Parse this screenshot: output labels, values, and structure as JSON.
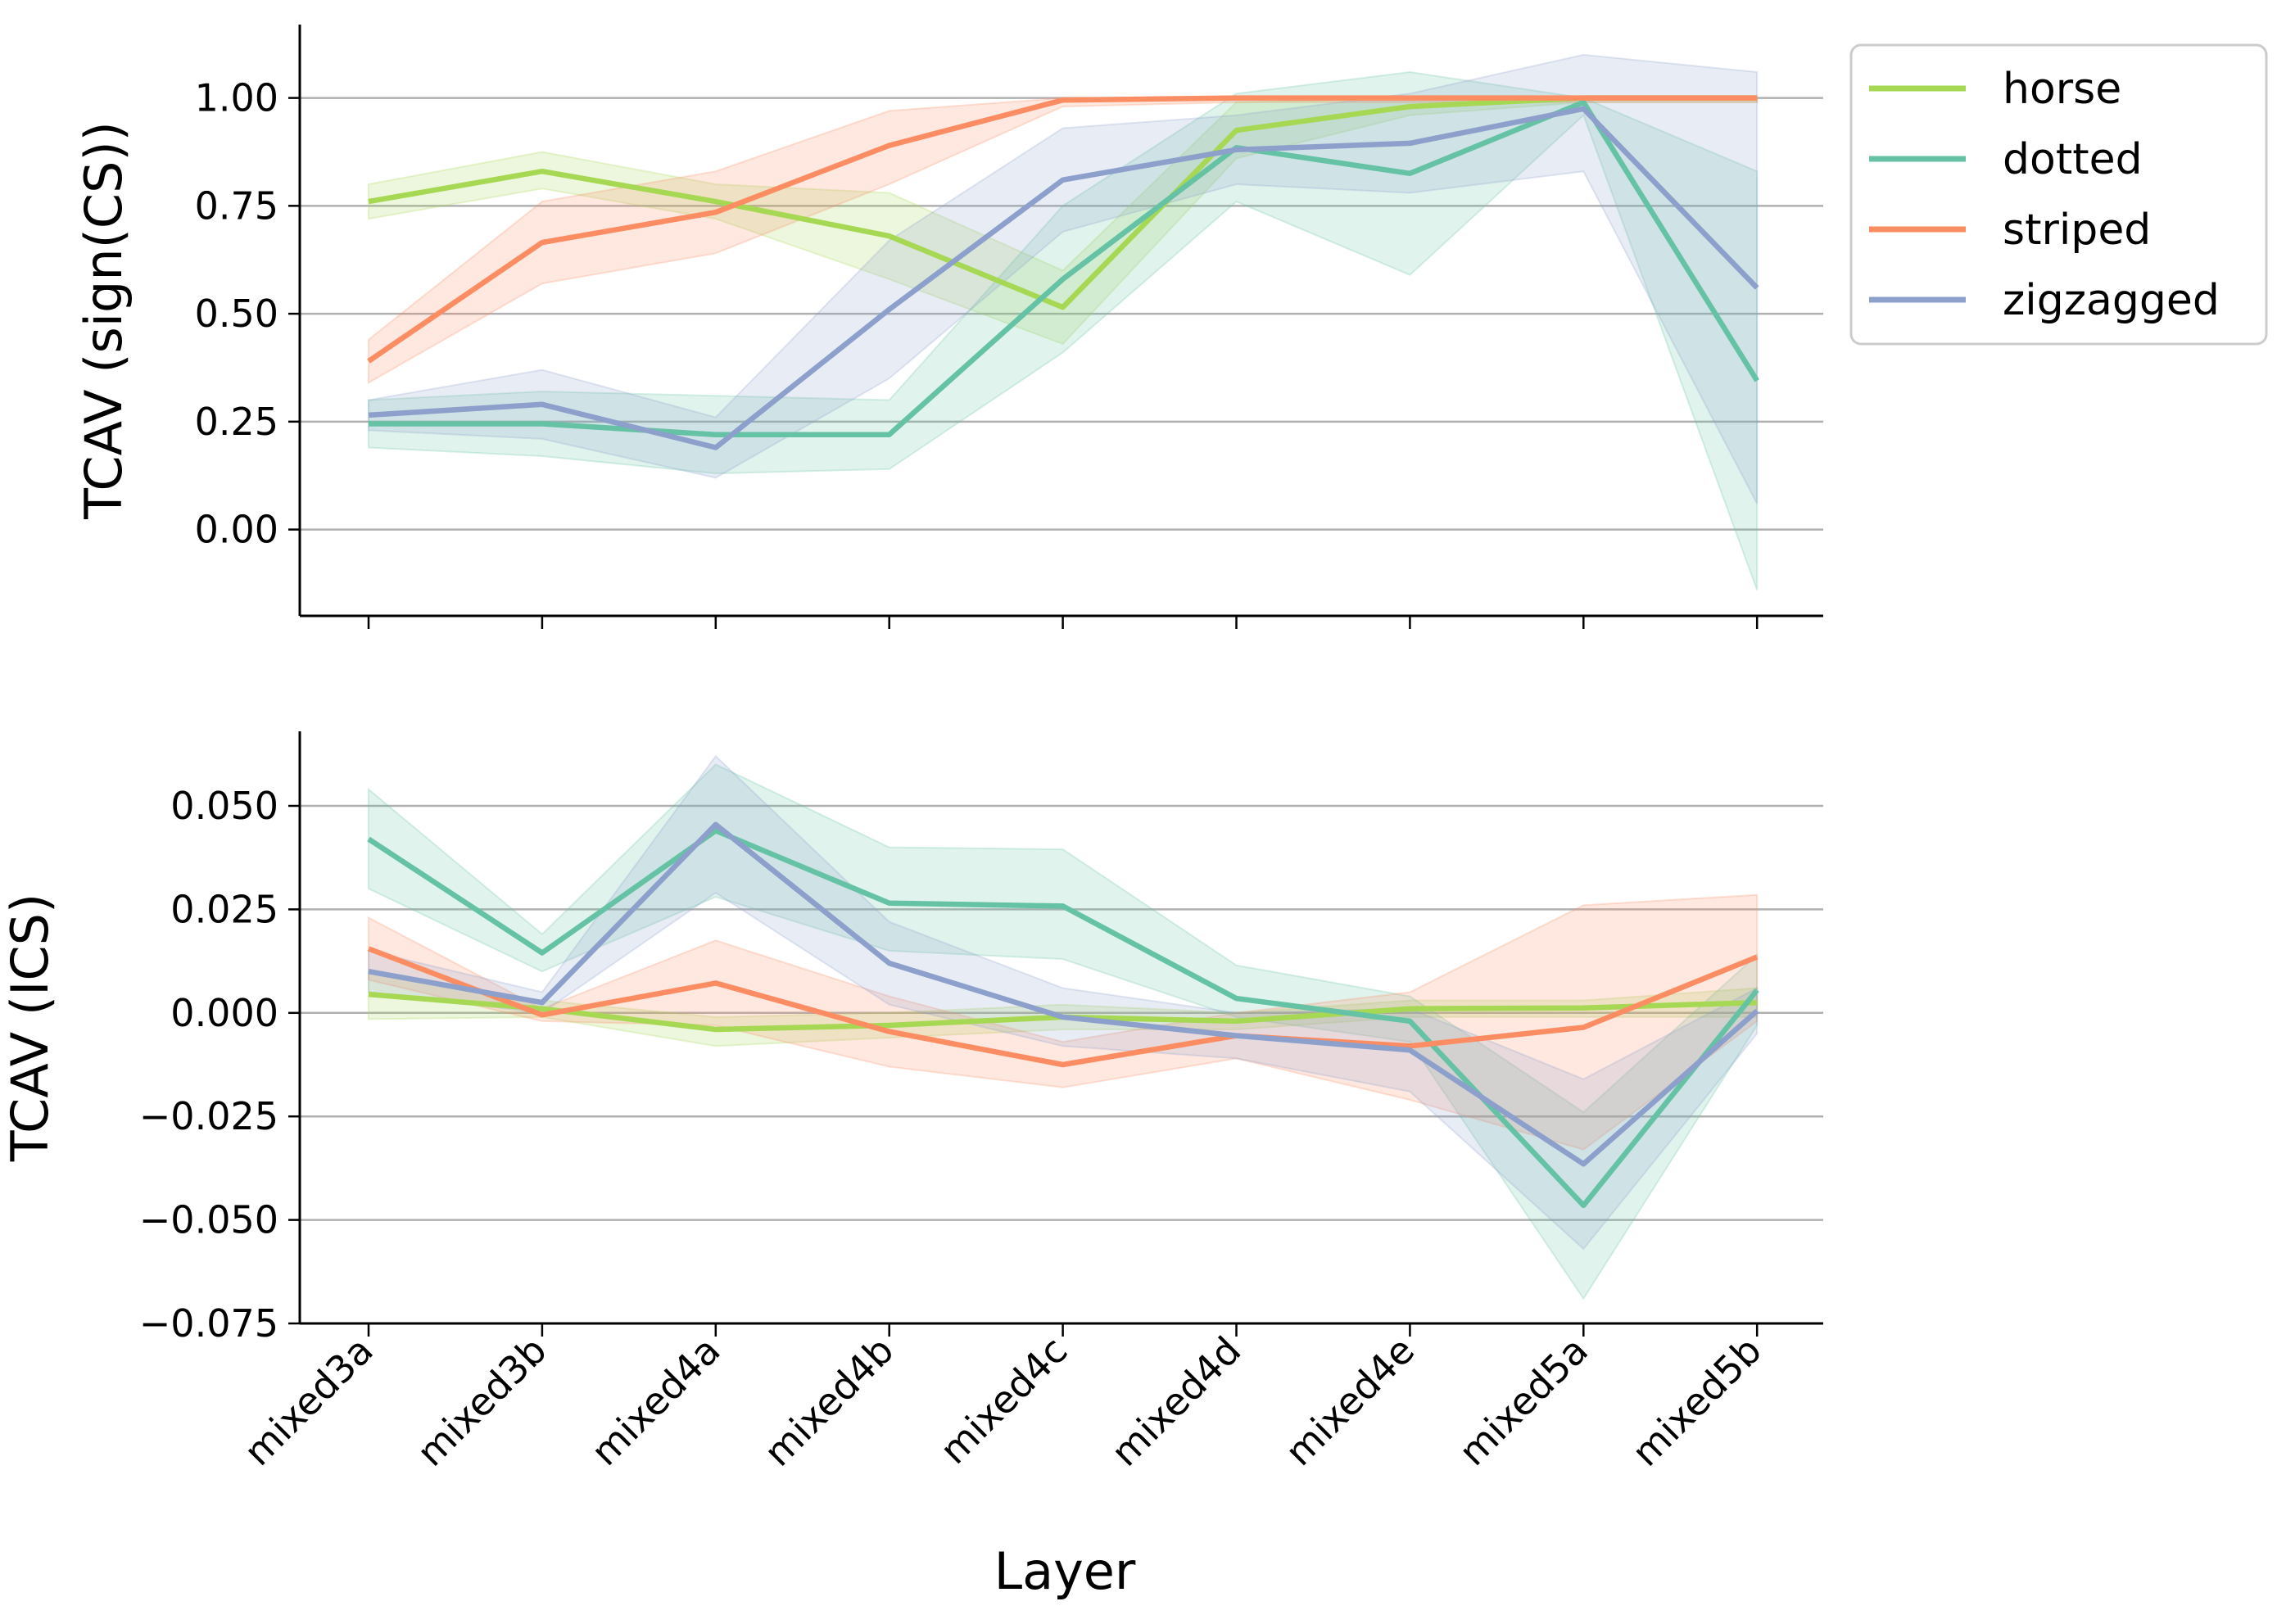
{
  "chart_data": [
    {
      "type": "line",
      "ylabel": "TCAV (sign(CS))",
      "xlabel": "",
      "ylim": [
        -0.2,
        1.17
      ],
      "yticks": [
        0.0,
        0.25,
        0.5,
        0.75,
        1.0
      ],
      "ytick_labels": [
        "0.00",
        "0.25",
        "0.50",
        "0.75",
        "1.00"
      ],
      "grid": "horizontal",
      "legend": "outside top-right",
      "series": [
        {
          "name": "horse",
          "color": "#a6d854",
          "values": [
            0.76,
            0.83,
            0.76,
            0.68,
            0.515,
            0.925,
            0.98,
            1.0,
            1.0
          ],
          "lower": [
            0.72,
            0.79,
            0.72,
            0.58,
            0.43,
            0.86,
            0.96,
            0.99,
            0.99
          ],
          "upper": [
            0.8,
            0.875,
            0.8,
            0.78,
            0.6,
            0.99,
            1.0,
            1.0,
            1.0
          ]
        },
        {
          "name": "dotted",
          "color": "#66c2a5",
          "values": [
            0.245,
            0.245,
            0.22,
            0.22,
            0.58,
            0.885,
            0.825,
            0.99,
            0.345
          ],
          "lower": [
            0.19,
            0.17,
            0.13,
            0.14,
            0.41,
            0.76,
            0.59,
            0.96,
            -0.14
          ],
          "upper": [
            0.3,
            0.32,
            0.31,
            0.3,
            0.75,
            1.01,
            1.06,
            1.0,
            0.83
          ]
        },
        {
          "name": "striped",
          "color": "#fc8d62",
          "values": [
            0.39,
            0.665,
            0.735,
            0.89,
            0.995,
            1.0,
            1.0,
            1.0,
            1.0
          ],
          "lower": [
            0.34,
            0.57,
            0.64,
            0.8,
            0.98,
            0.99,
            0.99,
            0.99,
            0.99
          ],
          "upper": [
            0.44,
            0.76,
            0.83,
            0.97,
            1.0,
            1.0,
            1.0,
            1.0,
            1.0
          ]
        },
        {
          "name": "zigzagged",
          "color": "#8da0cb",
          "values": [
            0.265,
            0.29,
            0.19,
            0.51,
            0.81,
            0.88,
            0.895,
            0.975,
            0.56
          ],
          "lower": [
            0.23,
            0.21,
            0.12,
            0.35,
            0.69,
            0.8,
            0.78,
            0.83,
            0.06
          ],
          "upper": [
            0.3,
            0.37,
            0.26,
            0.67,
            0.93,
            0.96,
            1.01,
            1.1,
            1.06
          ]
        }
      ]
    },
    {
      "type": "line",
      "ylabel": "TCAV (ICS)",
      "xlabel": "Layer",
      "ylim": [
        -0.075,
        0.068
      ],
      "yticks": [
        -0.075,
        -0.05,
        -0.025,
        0.0,
        0.025,
        0.05
      ],
      "ytick_labels": [
        "−0.075",
        "−0.050",
        "−0.025",
        "0.000",
        "0.025",
        "0.050"
      ],
      "grid": "horizontal",
      "series": [
        {
          "name": "horse",
          "color": "#a6d854",
          "values": [
            0.0045,
            0.001,
            -0.004,
            -0.003,
            -0.001,
            -0.002,
            0.001,
            0.0012,
            0.0025
          ],
          "lower": [
            -0.0015,
            -0.001,
            -0.008,
            -0.006,
            -0.004,
            -0.004,
            -0.001,
            -0.001,
            -0.001
          ],
          "upper": [
            0.01,
            0.003,
            -0.001,
            0.0,
            0.002,
            0.0,
            0.003,
            0.003,
            0.006
          ]
        },
        {
          "name": "dotted",
          "color": "#66c2a5",
          "values": [
            0.042,
            0.0145,
            0.044,
            0.0265,
            0.0258,
            0.0035,
            -0.002,
            -0.0465,
            0.0055
          ],
          "lower": [
            0.03,
            0.01,
            0.028,
            0.015,
            0.013,
            -0.001,
            -0.007,
            -0.069,
            -0.003
          ],
          "upper": [
            0.054,
            0.019,
            0.06,
            0.04,
            0.0395,
            0.0115,
            0.004,
            -0.024,
            0.014
          ]
        },
        {
          "name": "striped",
          "color": "#fc8d62",
          "values": [
            0.0155,
            -0.0005,
            0.0072,
            -0.0045,
            -0.0125,
            -0.0055,
            -0.008,
            -0.0035,
            0.0135
          ],
          "lower": [
            0.008,
            -0.002,
            -0.003,
            -0.013,
            -0.018,
            -0.011,
            -0.021,
            -0.033,
            -0.002
          ],
          "upper": [
            0.023,
            0.001,
            0.0175,
            0.004,
            -0.007,
            0.0,
            0.005,
            0.026,
            0.0285
          ]
        },
        {
          "name": "zigzagged",
          "color": "#8da0cb",
          "values": [
            0.01,
            0.0025,
            0.0455,
            0.012,
            -0.001,
            -0.0055,
            -0.009,
            -0.0365,
            0.0005
          ],
          "lower": [
            0.005,
            0.0,
            0.029,
            0.002,
            -0.008,
            -0.011,
            -0.019,
            -0.057,
            -0.005
          ],
          "upper": [
            0.015,
            0.005,
            0.062,
            0.022,
            0.006,
            0.0,
            0.001,
            -0.016,
            0.006
          ]
        }
      ]
    }
  ],
  "categories": [
    "mixed3a",
    "mixed3b",
    "mixed4a",
    "mixed4b",
    "mixed4c",
    "mixed4d",
    "mixed4e",
    "mixed5a",
    "mixed5b"
  ],
  "legend": {
    "items": [
      "horse",
      "dotted",
      "striped",
      "zigzagged"
    ]
  }
}
